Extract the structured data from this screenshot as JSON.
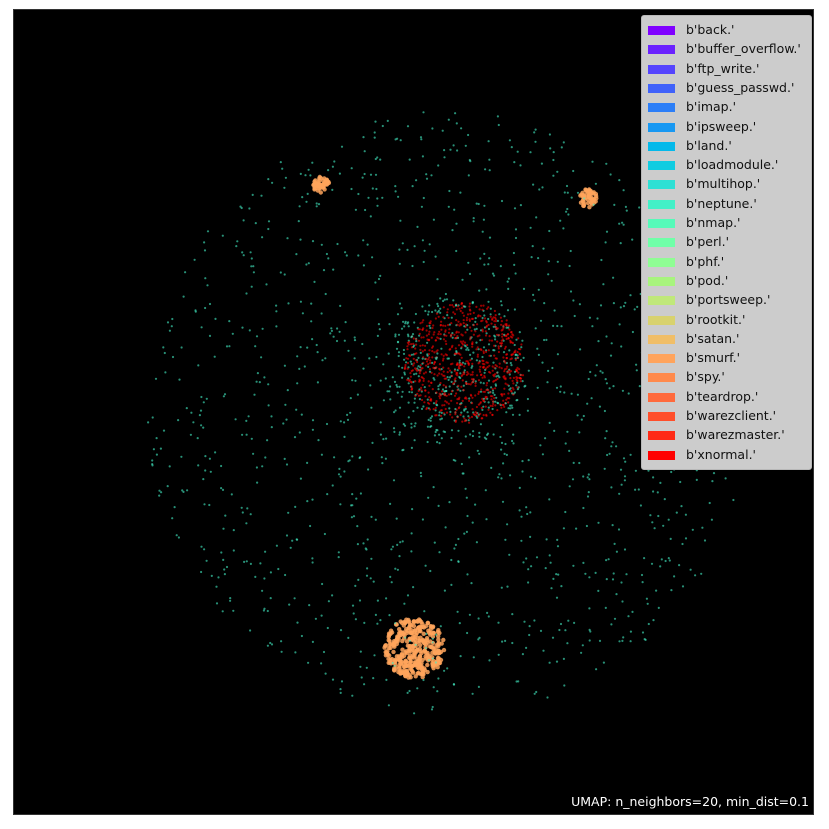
{
  "chart_data": {
    "type": "scatter",
    "title": "",
    "xlabel": "",
    "ylabel": "",
    "background": "#000000",
    "grid": false,
    "axes_visible": false,
    "legend_position": "top-right",
    "annotation": "UMAP: n_neighbors=20, min_dist=0.1",
    "series": [
      {
        "name": "b'back.'",
        "color": "#7f00ff"
      },
      {
        "name": "b'buffer_overflow.'",
        "color": "#6a22fe"
      },
      {
        "name": "b'ftp_write.'",
        "color": "#5544fd"
      },
      {
        "name": "b'guess_passwd.'",
        "color": "#4062fa"
      },
      {
        "name": "b'imap.'",
        "color": "#2c7ef7"
      },
      {
        "name": "b'ipsweep.'",
        "color": "#1898f2"
      },
      {
        "name": "b'land.'",
        "color": "#04b9ea"
      },
      {
        "name": "b'loadmodule.'",
        "color": "#10cce1"
      },
      {
        "name": "b'multihop.'",
        "color": "#2ee0d4"
      },
      {
        "name": "b'neptune.'",
        "color": "#42f0c7"
      },
      {
        "name": "b'nmap.'",
        "color": "#56fab9"
      },
      {
        "name": "b'perl.'",
        "color": "#70ffa8"
      },
      {
        "name": "b'phf.'",
        "color": "#8ffd94"
      },
      {
        "name": "b'pod.'",
        "color": "#a8f47e"
      },
      {
        "name": "b'portsweep.'",
        "color": "#c0e87a"
      },
      {
        "name": "b'rootkit.'",
        "color": "#d8d26e"
      },
      {
        "name": "b'satan.'",
        "color": "#f0be67"
      },
      {
        "name": "b'smurf.'",
        "color": "#ffa45c"
      },
      {
        "name": "b'spy.'",
        "color": "#ff8a4c"
      },
      {
        "name": "b'teardrop.'",
        "color": "#ff6a3c"
      },
      {
        "name": "b'warezclient.'",
        "color": "#ff4e2a"
      },
      {
        "name": "b'warezmaster.'",
        "color": "#ff2a16"
      },
      {
        "name": "b'xnormal.'",
        "color": "#ff0000"
      }
    ],
    "clusters": [
      {
        "series": "b'smurf.'",
        "cx": 0.0,
        "cy": -0.7,
        "r": 0.09,
        "n": 350
      },
      {
        "series": "b'smurf.'",
        "cx": -0.28,
        "cy": 0.68,
        "r": 0.025,
        "n": 50
      },
      {
        "series": "b'smurf.'",
        "cx": 0.52,
        "cy": 0.64,
        "r": 0.028,
        "n": 50
      },
      {
        "series": "b'neptune.'",
        "cx": 0.12,
        "cy": 0.12,
        "r": 0.22,
        "n": 350
      },
      {
        "series": "b'xnormal.'",
        "cx": 0.15,
        "cy": 0.15,
        "r": 0.18,
        "n": 700
      },
      {
        "series": "b'neptune.'",
        "cx": 0.1,
        "cy": 0.0,
        "r": 0.9,
        "n": 1200
      }
    ]
  }
}
